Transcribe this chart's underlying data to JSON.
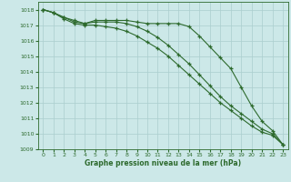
{
  "x": [
    0,
    1,
    2,
    3,
    4,
    5,
    6,
    7,
    8,
    9,
    10,
    11,
    12,
    13,
    14,
    15,
    16,
    17,
    18,
    19,
    20,
    21,
    22,
    23
  ],
  "top_line": [
    1018.0,
    1017.8,
    1017.5,
    1017.3,
    1017.1,
    1017.3,
    1017.3,
    1017.3,
    1017.3,
    1017.2,
    1017.1,
    1017.1,
    1017.1,
    1017.1,
    1016.9,
    1016.3,
    1015.6,
    1014.9,
    1014.2,
    1013.0,
    1011.8,
    1010.8,
    1010.2,
    1009.3
  ],
  "mid_line": [
    1018.0,
    1017.8,
    1017.5,
    1017.2,
    1017.1,
    1017.2,
    1017.2,
    1017.2,
    1017.1,
    1016.9,
    1016.6,
    1016.2,
    1015.7,
    1015.1,
    1014.5,
    1013.8,
    1013.1,
    1012.4,
    1011.8,
    1011.3,
    1010.8,
    1010.3,
    1010.0,
    1009.3
  ],
  "bot_line": [
    1018.0,
    1017.8,
    1017.4,
    1017.1,
    1017.0,
    1017.0,
    1016.9,
    1016.8,
    1016.6,
    1016.3,
    1015.9,
    1015.5,
    1015.0,
    1014.4,
    1013.8,
    1013.2,
    1012.6,
    1012.0,
    1011.5,
    1011.0,
    1010.5,
    1010.1,
    1009.9,
    1009.3
  ],
  "line_color": "#2d6a2d",
  "bg_color": "#cce8e8",
  "grid_color": "#aacece",
  "xlabel": "Graphe pression niveau de la mer (hPa)",
  "ylim": [
    1009,
    1018.5
  ],
  "yticks": [
    1009,
    1010,
    1011,
    1012,
    1013,
    1014,
    1015,
    1016,
    1017,
    1018
  ],
  "xticks": [
    0,
    1,
    2,
    3,
    4,
    5,
    6,
    7,
    8,
    9,
    10,
    11,
    12,
    13,
    14,
    15,
    16,
    17,
    18,
    19,
    20,
    21,
    22,
    23
  ]
}
